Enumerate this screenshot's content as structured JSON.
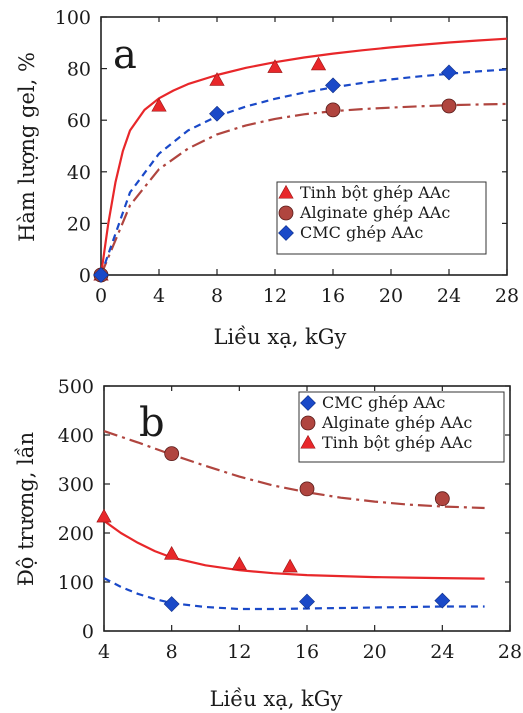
{
  "colors": {
    "tinh_bot": "#e8272a",
    "alginate": "#b0453f",
    "cmc": "#1a49c8",
    "axis": "#222222"
  },
  "chart_data": [
    {
      "type": "scatter",
      "panel_label": "a",
      "xlabel": "Liều xạ, kGy",
      "ylabel": "Hàm lượng gel, %",
      "xlim": [
        0,
        28
      ],
      "ylim": [
        0,
        100
      ],
      "xticks": [
        0,
        4,
        8,
        12,
        16,
        20,
        24,
        28
      ],
      "yticks": [
        0,
        20,
        40,
        60,
        80,
        100
      ],
      "legend_position": "bottom-right",
      "series": [
        {
          "name": "Tinh bột ghép AAc",
          "marker": "triangle",
          "color": "#e8272a",
          "line_style": "solid",
          "x": [
            0,
            4,
            8,
            12,
            15
          ],
          "y": [
            0,
            65.5,
            75.5,
            80.5,
            81.5
          ],
          "fit_x": [
            0,
            0.5,
            1,
            1.5,
            2,
            3,
            4,
            5,
            6,
            8,
            10,
            12,
            14,
            16,
            18,
            20,
            22,
            24,
            26,
            28
          ],
          "fit_y": [
            0,
            20,
            36,
            48,
            56,
            64,
            68.5,
            71.5,
            74,
            77.5,
            80.3,
            82.5,
            84.3,
            85.8,
            87.1,
            88.2,
            89.2,
            90.1,
            90.9,
            91.6
          ]
        },
        {
          "name": "Alginate ghép AAc",
          "marker": "circle",
          "color": "#b0453f",
          "line_style": "dashdot",
          "x": [
            0,
            16,
            24
          ],
          "y": [
            0,
            64,
            65.5
          ],
          "fit_x": [
            0,
            2,
            4,
            6,
            8,
            10,
            12,
            14,
            16,
            18,
            20,
            22,
            24,
            26,
            28
          ],
          "fit_y": [
            0,
            27,
            41,
            49,
            54.5,
            58,
            60.5,
            62.3,
            63.5,
            64.3,
            64.9,
            65.4,
            65.8,
            66.1,
            66.3
          ]
        },
        {
          "name": "CMC ghép AAc",
          "marker": "diamond",
          "color": "#1a49c8",
          "line_style": "dashed",
          "x": [
            0,
            8,
            16,
            24
          ],
          "y": [
            0,
            62.5,
            73.5,
            78.5
          ],
          "fit_x": [
            0,
            2,
            4,
            6,
            8,
            10,
            12,
            14,
            16,
            18,
            20,
            22,
            24,
            26,
            28
          ],
          "fit_y": [
            0,
            32,
            47,
            56,
            61.5,
            65.3,
            68.3,
            70.7,
            72.7,
            74.4,
            75.8,
            77,
            78,
            78.9,
            79.7
          ]
        }
      ]
    },
    {
      "type": "scatter",
      "panel_label": "b",
      "xlabel": "Liều xạ, kGy",
      "ylabel": "Độ trương, lần",
      "xlim": [
        4,
        28
      ],
      "ylim": [
        0,
        500
      ],
      "xticks": [
        4,
        8,
        12,
        16,
        20,
        24,
        28
      ],
      "yticks": [
        0,
        100,
        200,
        300,
        400,
        500
      ],
      "legend_position": "top-right",
      "series": [
        {
          "name": "CMC ghép AAc",
          "marker": "diamond",
          "color": "#1a49c8",
          "line_style": "dashed",
          "x": [
            8,
            16,
            24
          ],
          "y": [
            55,
            60,
            62
          ],
          "fit_x": [
            4,
            5,
            6,
            7,
            8,
            10,
            12,
            14,
            16,
            18,
            20,
            22,
            24,
            26.5
          ],
          "fit_y": [
            108,
            90,
            76,
            65,
            57,
            49,
            45,
            45,
            46,
            47,
            48,
            49,
            50,
            50
          ]
        },
        {
          "name": "Alginate ghép AAc",
          "marker": "circle",
          "color": "#b0453f",
          "line_style": "dashdot",
          "x": [
            8,
            16,
            24
          ],
          "y": [
            362,
            290,
            270
          ],
          "fit_x": [
            4,
            6,
            8,
            10,
            12,
            14,
            16,
            18,
            20,
            22,
            24,
            26.5
          ],
          "fit_y": [
            408,
            385,
            360,
            337,
            315,
            297,
            283,
            272,
            264,
            258,
            254,
            251
          ]
        },
        {
          "name": "Tinh bột ghép AAc",
          "marker": "triangle",
          "color": "#e8272a",
          "line_style": "solid",
          "x": [
            4,
            8,
            12,
            15
          ],
          "y": [
            233,
            157,
            136,
            131
          ],
          "fit_x": [
            4,
            5,
            6,
            7,
            8,
            10,
            12,
            14,
            16,
            18,
            20,
            22,
            24,
            26.5
          ],
          "fit_y": [
            225,
            200,
            180,
            163,
            150,
            134,
            124,
            118,
            114,
            112,
            110,
            109,
            108,
            107
          ]
        }
      ]
    }
  ]
}
